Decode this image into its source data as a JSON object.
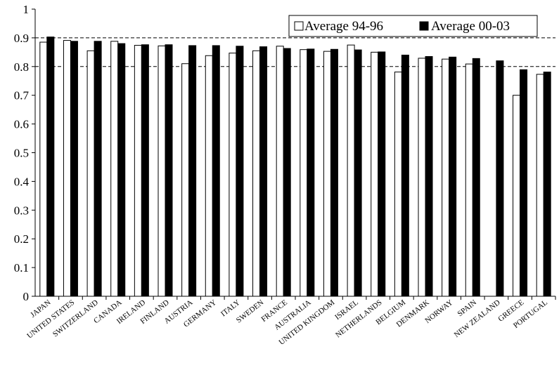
{
  "chart_data": {
    "type": "bar",
    "title": "",
    "xlabel": "",
    "ylabel": "",
    "ylim": [
      0,
      1
    ],
    "yticks": [
      "0",
      "0.1",
      "0.2",
      "0.3",
      "0.4",
      "0.5",
      "0.6",
      "0.7",
      "0.8",
      "0.9",
      "1"
    ],
    "grid": "dashed horizontal at 0.8 and 0.9",
    "legend": "top-right",
    "categories": [
      "JAPAN",
      "UNITED STATES",
      "SWITZERLAND",
      "CANADA",
      "IRELAND",
      "FINLAND",
      "AUSTRIA",
      "GERMANY",
      "ITALY",
      "SWEDEN",
      "FRANCE",
      "AUSTRALIA",
      "UNITED KINGDOM",
      "ISRAEL",
      "NETHERLANDS",
      "BELGIUM",
      "DENMARK",
      "NORWAY",
      "SPAIN",
      "NEW ZEALAND",
      "GREECE",
      "PORTUGAL"
    ],
    "series": [
      {
        "name": "Average 94-96",
        "color": "#ffffff",
        "values": [
          0.885,
          0.891,
          0.855,
          0.888,
          0.874,
          0.872,
          0.81,
          0.838,
          0.847,
          0.855,
          0.871,
          0.859,
          0.853,
          0.875,
          0.85,
          0.781,
          0.829,
          0.826,
          0.809,
          null,
          0.7,
          0.773
        ]
      },
      {
        "name": "Average 00-03",
        "color": "#000000",
        "values": [
          0.903,
          0.888,
          0.888,
          0.88,
          0.876,
          0.876,
          0.873,
          0.873,
          0.871,
          0.869,
          0.863,
          0.861,
          0.86,
          0.858,
          0.851,
          0.84,
          0.835,
          0.833,
          0.828,
          0.82,
          0.789,
          0.781
        ]
      }
    ]
  }
}
